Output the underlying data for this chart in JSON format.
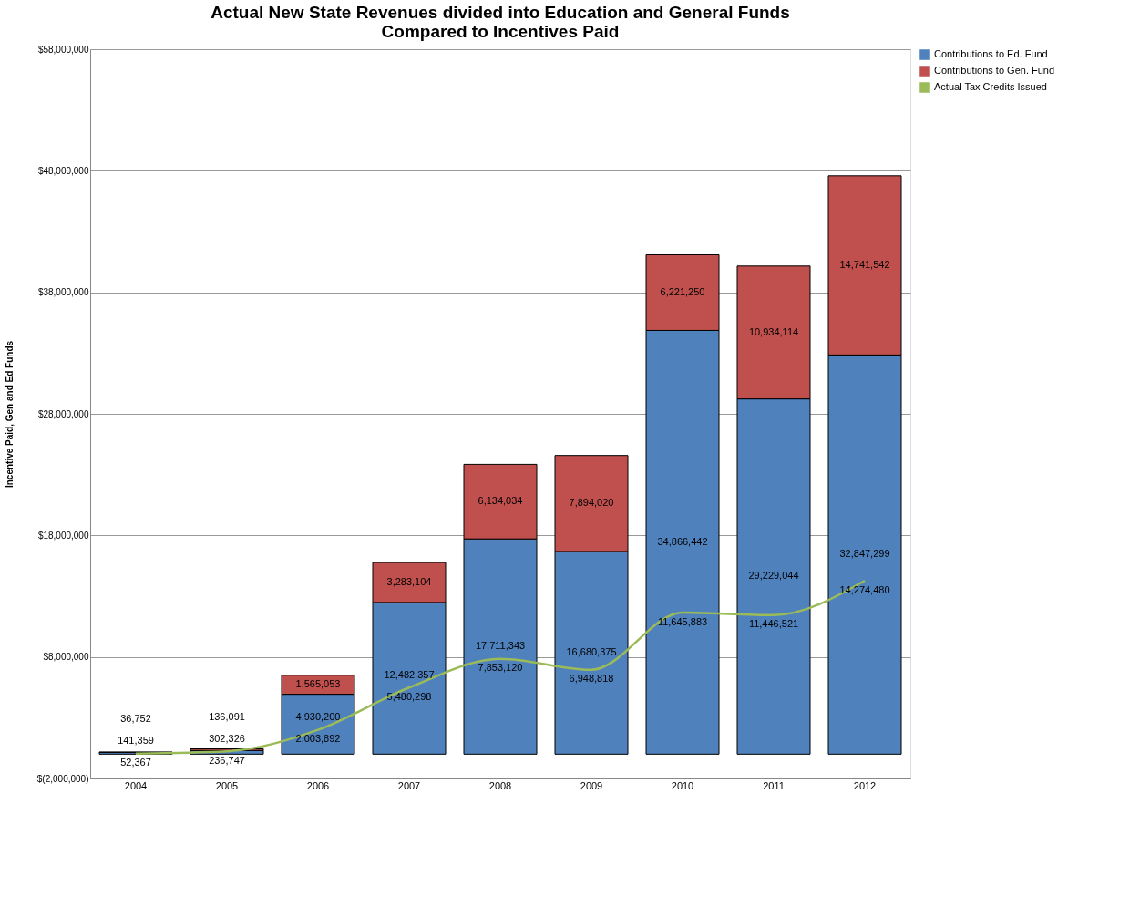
{
  "chart_data": {
    "type": "bar",
    "title": "Actual New State Revenues divided into Education and General Funds\nCompared to Incentives Paid",
    "ylabel": "Incentive Paid, Gen and Ed Funds",
    "categories": [
      "2004",
      "2005",
      "2006",
      "2007",
      "2008",
      "2009",
      "2010",
      "2011",
      "2012"
    ],
    "stacked": true,
    "series": [
      {
        "name": "Contributions to Ed. Fund",
        "color": "#4f81bd",
        "values": [
          141359,
          302326,
          4930200,
          12482357,
          17711343,
          16680375,
          34866442,
          29229044,
          32847299
        ],
        "value_labels": [
          "141,359",
          "302,326",
          "4,930,200",
          "12,482,357",
          "17,711,343",
          "16,680,375",
          "34,866,442",
          "29,229,044",
          "32,847,299"
        ]
      },
      {
        "name": "Contributions to Gen. Fund",
        "color": "#c0504d",
        "values": [
          36752,
          136091,
          1565053,
          3283104,
          6134034,
          7894020,
          6221250,
          10934114,
          14741542
        ],
        "value_labels": [
          "36,752",
          "136,091",
          "1,565,053",
          "3,283,104",
          "6,134,034",
          "7,894,020",
          "6,221,250",
          "10,934,114",
          "14,741,542"
        ]
      },
      {
        "name": "Actual Tax Credits Issued",
        "type": "line",
        "color": "#9bbb59",
        "values": [
          52367,
          236747,
          2003892,
          5480298,
          7853120,
          6948818,
          11645883,
          11446521,
          14274480
        ],
        "value_labels": [
          "52,367",
          "236,747",
          "2,003,892",
          "5,480,298",
          "7,853,120",
          "6,948,818",
          "11,645,883",
          "11,446,521",
          "14,274,480"
        ]
      }
    ],
    "ylim": [
      -2000000,
      58000000
    ],
    "yticks": [
      {
        "value": -2000000,
        "label": "$(2,000,000)"
      },
      {
        "value": 8000000,
        "label": "$8,000,000"
      },
      {
        "value": 18000000,
        "label": "$18,000,000"
      },
      {
        "value": 28000000,
        "label": "$28,000,000"
      },
      {
        "value": 38000000,
        "label": "$38,000,000"
      },
      {
        "value": 48000000,
        "label": "$48,000,000"
      },
      {
        "value": 58000000,
        "label": "$58,000,000"
      }
    ],
    "grid": "y",
    "legend": "right",
    "marker": "none"
  }
}
